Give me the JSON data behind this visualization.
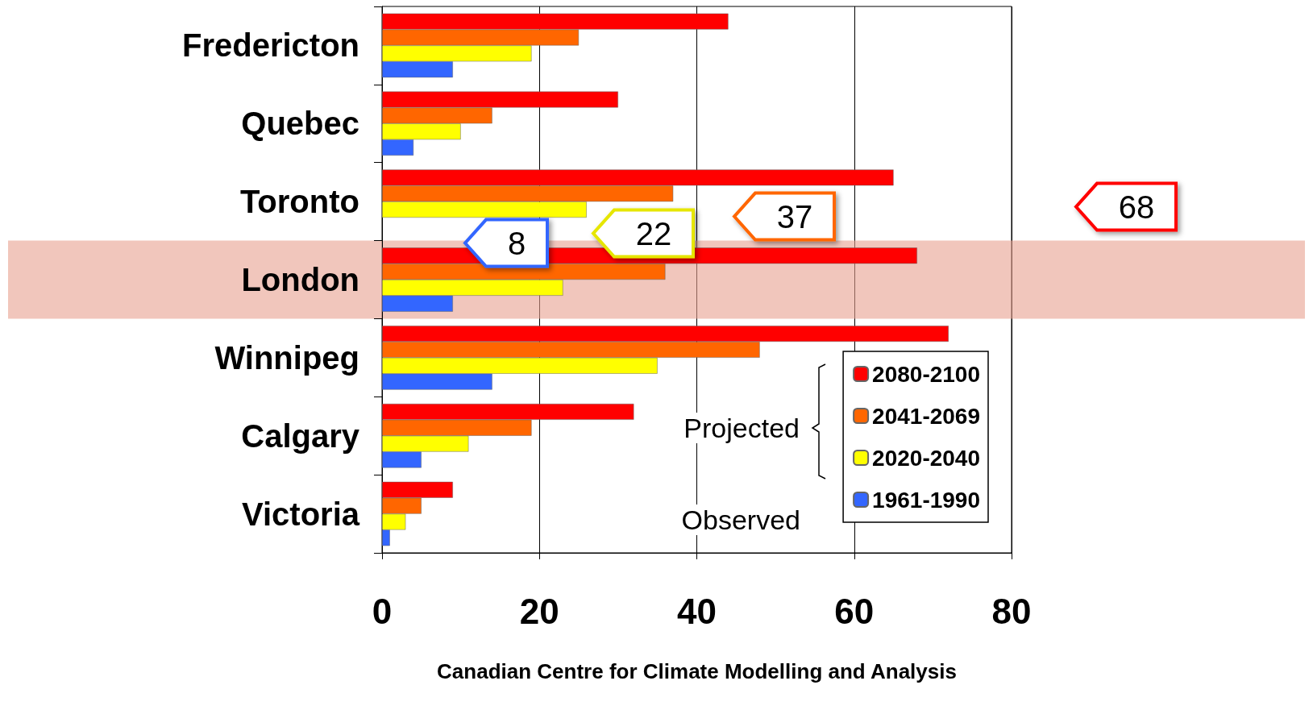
{
  "chart_data": {
    "type": "bar",
    "orientation": "horizontal",
    "xlabel": "Canadian Centre for Climate Modelling and Analysis",
    "categories": [
      "Fredericton",
      "Quebec",
      "Toronto",
      "London",
      "Winnipeg",
      "Calgary",
      "Victoria"
    ],
    "series": [
      {
        "name": "2080-2100",
        "color": "#ff0000",
        "values": [
          44,
          30,
          65,
          68,
          72,
          32,
          9
        ]
      },
      {
        "name": "2041-2069",
        "color": "#ff6600",
        "values": [
          25,
          14,
          37,
          36,
          48,
          19,
          5
        ]
      },
      {
        "name": "2020-2040",
        "color": "#ffff00",
        "values": [
          19,
          10,
          26,
          23,
          35,
          11,
          3
        ]
      },
      {
        "name": "1961-1990",
        "color": "#3366ff",
        "values": [
          9,
          4,
          null,
          9,
          14,
          5,
          1
        ]
      }
    ],
    "xlim": [
      0,
      80
    ],
    "xticks": [
      0,
      20,
      40,
      60,
      80
    ],
    "grid": "x",
    "legend": "bottom right",
    "bands": [
      {
        "axis": "y",
        "from": "London",
        "to": "London",
        "color": "#e8a090"
      }
    ],
    "annotations": [
      "68",
      "37",
      "22",
      "8",
      "Projected",
      "Observed"
    ]
  }
}
